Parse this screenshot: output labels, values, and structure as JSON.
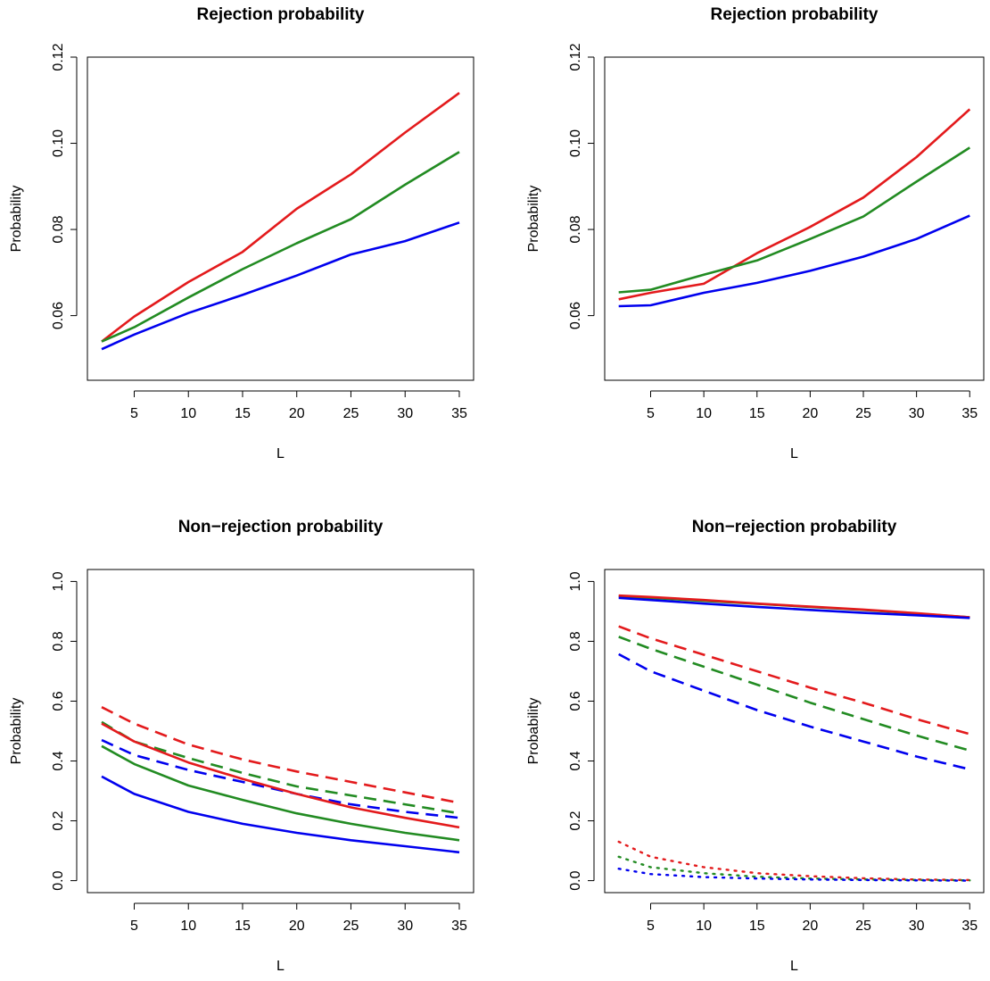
{
  "chart_data": [
    {
      "type": "line",
      "title": "Rejection probability",
      "xlabel": "L",
      "ylabel": "Probability",
      "xlim": [
        2,
        35
      ],
      "ylim": [
        0.045,
        0.12
      ],
      "xticks": [
        5,
        10,
        15,
        20,
        25,
        30,
        35
      ],
      "yticks": [
        0.06,
        0.08,
        0.1,
        0.12
      ],
      "ytick_labels": [
        "0.06",
        "0.08",
        "0.10",
        "0.12"
      ],
      "x": [
        2,
        5,
        10,
        15,
        20,
        25,
        30,
        35
      ],
      "series": [
        {
          "color": "#e31a1c",
          "style": "solid",
          "values": [
            0.054,
            0.0598,
            0.0678,
            0.0748,
            0.0848,
            0.0928,
            0.1025,
            0.1117
          ]
        },
        {
          "color": "#228b22",
          "style": "solid",
          "values": [
            0.054,
            0.0573,
            0.0642,
            0.0708,
            0.0768,
            0.0824,
            0.0904,
            0.098
          ]
        },
        {
          "color": "#0000ee",
          "style": "solid",
          "values": [
            0.0522,
            0.0556,
            0.0606,
            0.0648,
            0.0693,
            0.0742,
            0.0773,
            0.0816
          ]
        }
      ]
    },
    {
      "type": "line",
      "title": "Rejection probability",
      "xlabel": "L",
      "ylabel": "Probability",
      "xlim": [
        2,
        35
      ],
      "ylim": [
        0.045,
        0.12
      ],
      "xticks": [
        5,
        10,
        15,
        20,
        25,
        30,
        35
      ],
      "yticks": [
        0.06,
        0.08,
        0.1,
        0.12
      ],
      "ytick_labels": [
        "0.06",
        "0.08",
        "0.10",
        "0.12"
      ],
      "x": [
        2,
        5,
        10,
        15,
        20,
        25,
        30,
        35
      ],
      "series": [
        {
          "color": "#e31a1c",
          "style": "solid",
          "values": [
            0.0638,
            0.0653,
            0.0674,
            0.0745,
            0.0806,
            0.0874,
            0.0968,
            0.1079
          ]
        },
        {
          "color": "#228b22",
          "style": "solid",
          "values": [
            0.0654,
            0.066,
            0.0695,
            0.0728,
            0.0778,
            0.083,
            0.0911,
            0.099
          ]
        },
        {
          "color": "#0000ee",
          "style": "solid",
          "values": [
            0.0622,
            0.0624,
            0.0653,
            0.0676,
            0.0704,
            0.0737,
            0.0778,
            0.0832
          ]
        }
      ]
    },
    {
      "type": "line",
      "title": "Non−rejection probability",
      "xlabel": "L",
      "ylabel": "Probability",
      "xlim": [
        2,
        35
      ],
      "ylim": [
        -0.04,
        1.04
      ],
      "xticks": [
        5,
        10,
        15,
        20,
        25,
        30,
        35
      ],
      "yticks": [
        0.0,
        0.2,
        0.4,
        0.6,
        0.8,
        1.0
      ],
      "ytick_labels": [
        "0.0",
        "0.2",
        "0.4",
        "0.6",
        "0.8",
        "1.0"
      ],
      "x": [
        2,
        5,
        10,
        15,
        20,
        25,
        30,
        35
      ],
      "series": [
        {
          "color": "#e31a1c",
          "style": "dashed",
          "values": [
            0.58,
            0.525,
            0.455,
            0.405,
            0.365,
            0.33,
            0.295,
            0.26
          ]
        },
        {
          "color": "#228b22",
          "style": "dashed",
          "values": [
            0.53,
            0.465,
            0.41,
            0.36,
            0.315,
            0.285,
            0.255,
            0.225
          ]
        },
        {
          "color": "#0000ee",
          "style": "dashed",
          "values": [
            0.47,
            0.42,
            0.37,
            0.33,
            0.29,
            0.255,
            0.23,
            0.21
          ]
        },
        {
          "color": "#e31a1c",
          "style": "solid",
          "values": [
            0.525,
            0.465,
            0.395,
            0.34,
            0.29,
            0.245,
            0.21,
            0.178
          ]
        },
        {
          "color": "#228b22",
          "style": "solid",
          "values": [
            0.45,
            0.39,
            0.318,
            0.27,
            0.225,
            0.19,
            0.16,
            0.135
          ]
        },
        {
          "color": "#0000ee",
          "style": "solid",
          "values": [
            0.348,
            0.29,
            0.23,
            0.19,
            0.16,
            0.135,
            0.115,
            0.095
          ]
        }
      ]
    },
    {
      "type": "line",
      "title": "Non−rejection probability",
      "xlabel": "L",
      "ylabel": "Probability",
      "xlim": [
        2,
        35
      ],
      "ylim": [
        -0.04,
        1.04
      ],
      "xticks": [
        5,
        10,
        15,
        20,
        25,
        30,
        35
      ],
      "yticks": [
        0.0,
        0.2,
        0.4,
        0.6,
        0.8,
        1.0
      ],
      "ytick_labels": [
        "0.0",
        "0.2",
        "0.4",
        "0.6",
        "0.8",
        "1.0"
      ],
      "x": [
        2,
        5,
        10,
        15,
        20,
        25,
        30,
        35
      ],
      "series": [
        {
          "color": "#228b22",
          "style": "solid",
          "values": [
            0.95,
            0.945,
            0.935,
            0.925,
            0.915,
            0.905,
            0.893,
            0.88
          ]
        },
        {
          "color": "#e31a1c",
          "style": "solid",
          "values": [
            0.953,
            0.948,
            0.938,
            0.926,
            0.916,
            0.906,
            0.894,
            0.88
          ]
        },
        {
          "color": "#0000ee",
          "style": "solid",
          "values": [
            0.945,
            0.938,
            0.926,
            0.915,
            0.905,
            0.895,
            0.887,
            0.878
          ]
        },
        {
          "color": "#e31a1c",
          "style": "dashed",
          "values": [
            0.85,
            0.81,
            0.755,
            0.7,
            0.645,
            0.595,
            0.54,
            0.49
          ]
        },
        {
          "color": "#228b22",
          "style": "dashed",
          "values": [
            0.815,
            0.775,
            0.715,
            0.655,
            0.595,
            0.54,
            0.485,
            0.435
          ]
        },
        {
          "color": "#0000ee",
          "style": "dashed",
          "values": [
            0.757,
            0.7,
            0.635,
            0.57,
            0.515,
            0.465,
            0.415,
            0.372
          ]
        },
        {
          "color": "#e31a1c",
          "style": "dotted",
          "values": [
            0.13,
            0.08,
            0.045,
            0.025,
            0.015,
            0.008,
            0.004,
            0.002
          ]
        },
        {
          "color": "#228b22",
          "style": "dotted",
          "values": [
            0.08,
            0.045,
            0.025,
            0.013,
            0.007,
            0.004,
            0.002,
            0.001
          ]
        },
        {
          "color": "#0000ee",
          "style": "dotted",
          "values": [
            0.04,
            0.022,
            0.012,
            0.007,
            0.004,
            0.002,
            0.001,
            0.0
          ]
        }
      ]
    }
  ]
}
